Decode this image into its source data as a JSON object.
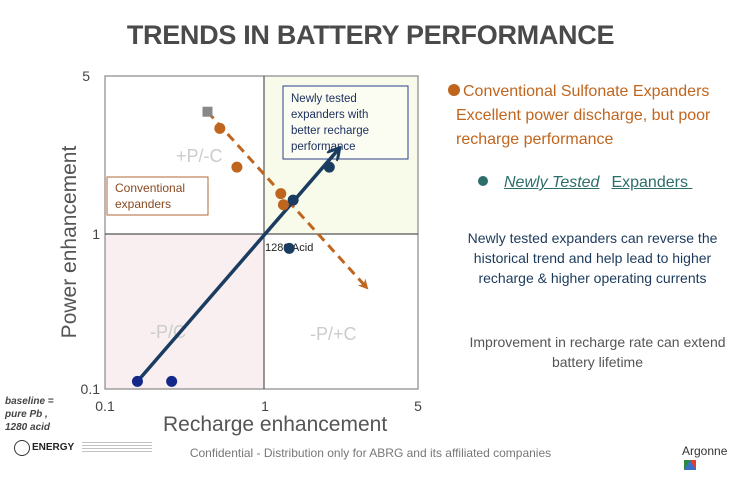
{
  "title": "TRENDS IN BATTERY PERFORMANCE",
  "chart_data": {
    "type": "scatter",
    "xscale": "log",
    "yscale": "log",
    "xlabel": "Recharge enhancement",
    "ylabel": "Power enhancement",
    "xlim": [
      0.1,
      5
    ],
    "ylim": [
      0.1,
      5
    ],
    "xticks": [
      "0.1",
      "1",
      "5"
    ],
    "yticks": [
      "0.1",
      "1",
      "5"
    ],
    "quadrant_labels": [
      "+P/-C",
      "-P/C",
      "-P/+C"
    ],
    "annotations": {
      "conventional_box": "Conventional expanders",
      "newly_tested_box": "Newly tested expanders with better recharge performance",
      "reference_label": "1280 Acid"
    },
    "series": [
      {
        "name": "Conventional Sulfonate Expanders",
        "color": "#c0651e",
        "points": [
          [
            0.42,
            2.6
          ],
          [
            0.52,
            1.6
          ],
          [
            0.9,
            1.15
          ],
          [
            0.93,
            1.0
          ]
        ]
      },
      {
        "name": "Newly Tested Expanders",
        "color": "#1a3c60",
        "points": [
          [
            0.15,
            0.11
          ],
          [
            0.23,
            0.11
          ],
          [
            1.0,
            0.58
          ],
          [
            1.05,
            1.06
          ],
          [
            1.65,
            1.6
          ]
        ]
      },
      {
        "name": "Baseline marker",
        "color": "#888888",
        "points": [
          [
            0.36,
            3.2
          ]
        ]
      }
    ],
    "trend_arrows": [
      {
        "name": "conventional-trend",
        "style": "dashed",
        "color": "#c0651e",
        "from": [
          0.36,
          3.2
        ],
        "to": [
          2.6,
          0.36
        ]
      },
      {
        "name": "newly-tested-trend",
        "style": "solid",
        "color": "#1a3c60",
        "from": [
          0.15,
          0.11
        ],
        "to": [
          1.85,
          2.0
        ]
      }
    ]
  },
  "right_panel": {
    "conventional_heading": "Conventional Sulfonate Expanders",
    "conventional_desc_1": "Excellent power discharge, but poor",
    "conventional_desc_2": "recharge performance",
    "newly_italic": "Newly Tested",
    "newly_rest": "Expanders",
    "reverse_text": "Newly tested expanders can reverse the historical trend and help lead to higher recharge & higher operating currents",
    "lifetime_text": "Improvement in recharge rate can extend battery lifetime"
  },
  "baseline_note": [
    "baseline =",
    "pure  Pb ,",
    "1280 acid"
  ],
  "footer": {
    "confidential": "Confidential  - Distribution only for ABRG and its affiliated companies",
    "doe_logo": "ENERGY",
    "argonne_logo": "Argonne"
  }
}
